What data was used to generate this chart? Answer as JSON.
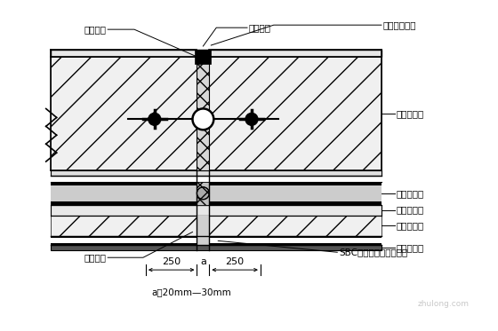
{
  "title": "a：20mm—30mm",
  "bg_color": "#ffffff",
  "labels": {
    "tian_feng": "填缝材料",
    "qian_feng": "嵌缝材料",
    "zhong_mai": "中埋式止水带",
    "hun_ning_jie_gou": "混凝土结构",
    "sha_jiang_bao_hu": "沙浆保护层",
    "sha_jiang_zhao_ping": "沙浆找平层",
    "hun_ning_dian": "混凝土垫层",
    "sbc": "SBC高分子复合防水卷材",
    "juan_cai": "卷材附加层",
    "tian_chong": "填充材料"
  },
  "dim_250": "250",
  "dim_a": "a",
  "watermark": "zhulong.com"
}
